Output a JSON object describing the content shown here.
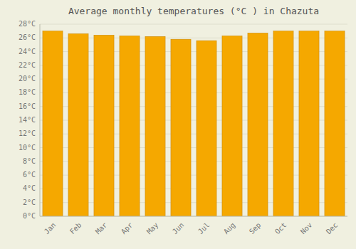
{
  "chart_data": {
    "type": "bar",
    "title": "Average monthly temperatures (°C ) in Chazuta",
    "categories": [
      "Jan",
      "Feb",
      "Mar",
      "Apr",
      "May",
      "Jun",
      "Jul",
      "Aug",
      "Sep",
      "Oct",
      "Nov",
      "Dec"
    ],
    "values": [
      27.0,
      26.6,
      26.4,
      26.3,
      26.2,
      25.8,
      25.6,
      26.3,
      26.7,
      27.0,
      27.0,
      27.0
    ],
    "color": "#F5A800",
    "ylim": [
      0,
      28
    ],
    "yticks": [
      {
        "value": 0,
        "label": "0°C"
      },
      {
        "value": 2,
        "label": "2°C"
      },
      {
        "value": 4,
        "label": "4°C"
      },
      {
        "value": 6,
        "label": "6°C"
      },
      {
        "value": 8,
        "label": "8°C"
      },
      {
        "value": 10,
        "label": "10°C"
      },
      {
        "value": 12,
        "label": "12°C"
      },
      {
        "value": 14,
        "label": "14°C"
      },
      {
        "value": 16,
        "label": "16°C"
      },
      {
        "value": 18,
        "label": "18°C"
      },
      {
        "value": 20,
        "label": "20°C"
      },
      {
        "value": 22,
        "label": "22°C"
      },
      {
        "value": 24,
        "label": "24°C"
      },
      {
        "value": 26,
        "label": "26°C"
      },
      {
        "value": 28,
        "label": "28°C"
      }
    ],
    "grid": true
  }
}
